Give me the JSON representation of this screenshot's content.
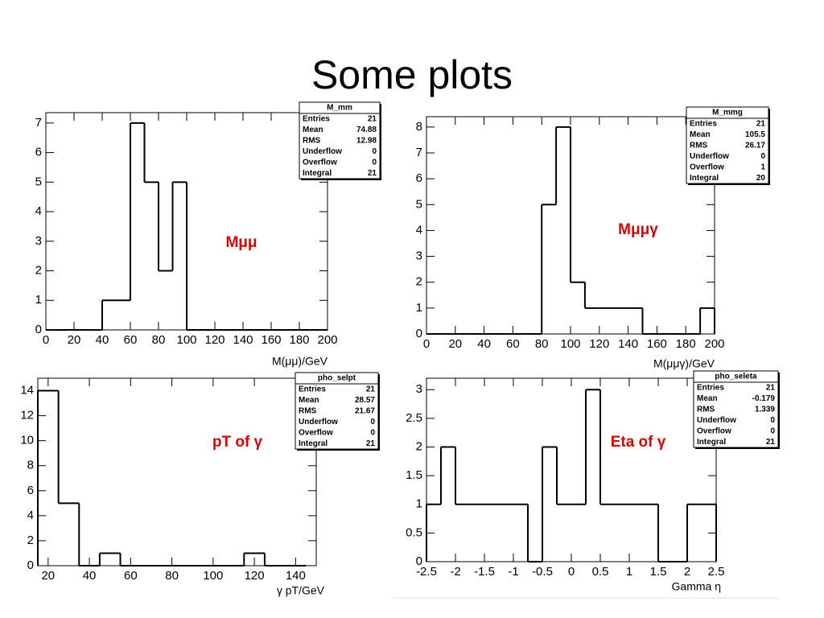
{
  "title": "Some plots",
  "chart_data": [
    {
      "type": "histogram",
      "color": "#000000",
      "bins": [
        0,
        10,
        20,
        30,
        40,
        50,
        60,
        70,
        80,
        90,
        100,
        110,
        120,
        130,
        140,
        150,
        160,
        170,
        180,
        190,
        200
      ],
      "values": [
        0,
        0,
        0,
        0,
        1,
        1,
        7,
        5,
        2,
        5,
        0,
        0,
        0,
        0,
        0,
        0,
        0,
        0,
        0,
        0
      ],
      "xlim": [
        0,
        200
      ],
      "xticks": [
        0,
        20,
        40,
        60,
        80,
        100,
        120,
        140,
        160,
        180,
        200
      ],
      "ylim": [
        0,
        7.35
      ],
      "yticks": [
        0,
        1,
        2,
        3,
        4,
        5,
        6,
        7
      ],
      "x_label": "M(μμ)/GeV",
      "annotation": "Mμμ",
      "annotation_color": "#e00000",
      "stats": {
        "title": "M_mm",
        "rows": [
          {
            "label": "Entries",
            "value": 21
          },
          {
            "label": "Mean",
            "value": 74.88
          },
          {
            "label": "RMS",
            "value": 12.98
          },
          {
            "label": "Underflow",
            "value": 0
          },
          {
            "label": "Overflow",
            "value": 0
          },
          {
            "label": "Integral",
            "value": 21
          }
        ]
      }
    },
    {
      "type": "histogram",
      "color": "#000000",
      "bins": [
        0,
        10,
        20,
        30,
        40,
        50,
        60,
        70,
        80,
        90,
        100,
        110,
        120,
        130,
        140,
        150,
        160,
        170,
        180,
        190,
        200
      ],
      "values": [
        0,
        0,
        0,
        0,
        0,
        0,
        0,
        0,
        5,
        8,
        2,
        1,
        1,
        1,
        1,
        0,
        0,
        0,
        0,
        1
      ],
      "xlim": [
        0,
        200
      ],
      "xticks": [
        0,
        20,
        40,
        60,
        80,
        100,
        120,
        140,
        160,
        180,
        200
      ],
      "ylim": [
        0,
        8.4
      ],
      "yticks": [
        0,
        1,
        2,
        3,
        4,
        5,
        6,
        7,
        8
      ],
      "x_label": "M(μμγ)/GeV",
      "annotation": "Mμμγ",
      "annotation_color": "#e00000",
      "stats": {
        "title": "M_mmg",
        "rows": [
          {
            "label": "Entries",
            "value": 21
          },
          {
            "label": "Mean",
            "value": 105.5
          },
          {
            "label": "RMS",
            "value": 26.17
          },
          {
            "label": "Underflow",
            "value": 0
          },
          {
            "label": "Overflow",
            "value": 1
          },
          {
            "label": "Integral",
            "value": 20
          }
        ]
      }
    },
    {
      "type": "histogram",
      "color": "#000000",
      "bins": [
        15,
        25,
        35,
        45,
        55,
        65,
        75,
        85,
        95,
        105,
        115,
        125,
        135,
        145
      ],
      "values": [
        14,
        5,
        0,
        1,
        0,
        0,
        0,
        0,
        0,
        0,
        1,
        0,
        0
      ],
      "xlim": [
        15,
        150
      ],
      "xticks": [
        20,
        40,
        60,
        80,
        100,
        120,
        140
      ],
      "ylim": [
        0,
        15
      ],
      "yticks": [
        0,
        2,
        4,
        6,
        8,
        10,
        12,
        14
      ],
      "x_label": "γ pT/GeV",
      "annotation": "pT of γ",
      "annotation_color": "#e00000",
      "stats": {
        "title": "pho_selpt",
        "rows": [
          {
            "label": "Entries",
            "value": 21
          },
          {
            "label": "Mean",
            "value": 28.57
          },
          {
            "label": "RMS",
            "value": 21.67
          },
          {
            "label": "Underflow",
            "value": 0
          },
          {
            "label": "Overflow",
            "value": 0
          },
          {
            "label": "Integral",
            "value": 21
          }
        ]
      }
    },
    {
      "type": "histogram",
      "color": "#000000",
      "bins": [
        -2.5,
        -2.25,
        -2,
        -1.75,
        -1.5,
        -1.25,
        -1,
        -0.75,
        -0.5,
        -0.25,
        0,
        0.25,
        0.5,
        0.75,
        1,
        1.25,
        1.5,
        1.75,
        2,
        2.25,
        2.5
      ],
      "values": [
        1,
        2,
        1,
        1,
        1,
        1,
        1,
        0,
        2,
        1,
        1,
        3,
        1,
        1,
        1,
        1,
        0,
        0,
        1,
        1
      ],
      "xlim": [
        -2.5,
        2.5
      ],
      "xticks": [
        -2.5,
        -2,
        -1.5,
        -1,
        -0.5,
        0,
        0.5,
        1,
        1.5,
        2,
        2.5
      ],
      "ylim": [
        0,
        3.2
      ],
      "yticks": [
        0,
        0.5,
        1,
        1.5,
        2,
        2.5,
        3
      ],
      "x_label": "Gamma η",
      "annotation": "Eta of γ",
      "annotation_color": "#e00000",
      "stats": {
        "title": "pho_seleta",
        "rows": [
          {
            "label": "Entries",
            "value": 21
          },
          {
            "label": "Mean",
            "value": -0.179
          },
          {
            "label": "RMS",
            "value": 1.339
          },
          {
            "label": "Underflow",
            "value": 0
          },
          {
            "label": "Overflow",
            "value": 0
          },
          {
            "label": "Integral",
            "value": 21
          }
        ]
      }
    }
  ]
}
